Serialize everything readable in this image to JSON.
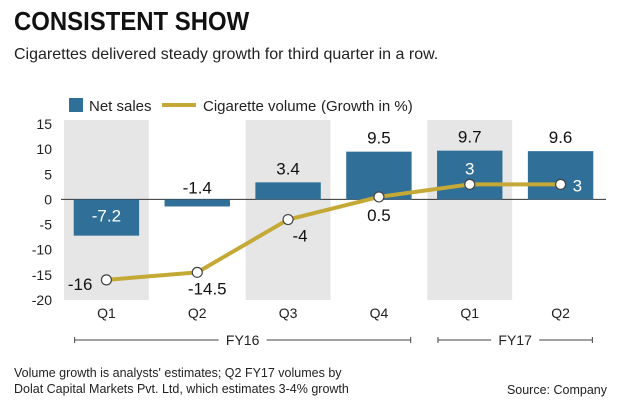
{
  "title": "CONSISTENT SHOW",
  "subtitle": "Cigarettes delivered steady growth for third quarter in a row.",
  "footnote": "Volume growth is analysts' estimates; Q2 FY17 volumes by Dolat Capital Markets Pvt. Ltd, which estimates 3-4% growth",
  "source": "Source: Company",
  "colors": {
    "bar": "#2f6f98",
    "line": "#c4a937",
    "panel": "#e6e6e6"
  },
  "chart_data": {
    "type": "bar",
    "categories": [
      "Q1",
      "Q2",
      "Q3",
      "Q4",
      "Q1",
      "Q2"
    ],
    "groups": [
      {
        "label": "FY16",
        "start": 0,
        "end": 3
      },
      {
        "label": "FY17",
        "start": 4,
        "end": 5
      }
    ],
    "legend_title": "(Growth in %)",
    "legend_position": "top-left",
    "series": [
      {
        "name": "Net sales",
        "type": "bar",
        "values": [
          -7.2,
          -1.4,
          3.4,
          9.5,
          9.7,
          9.6
        ],
        "labels": [
          "-7.2",
          "-1.4",
          "3.4",
          "9.5",
          "9.7",
          "9.6"
        ]
      },
      {
        "name": "Cigarette volume",
        "type": "line",
        "values": [
          -16,
          -14.5,
          -4,
          0.5,
          3,
          3
        ],
        "labels": [
          "-16",
          "-14.5",
          "-4",
          "0.5",
          "3",
          "3"
        ]
      }
    ],
    "yticks": [
      15,
      10,
      5,
      0,
      -5,
      -10,
      -15,
      -20
    ],
    "ylim": [
      -20,
      15
    ],
    "grid": false
  }
}
